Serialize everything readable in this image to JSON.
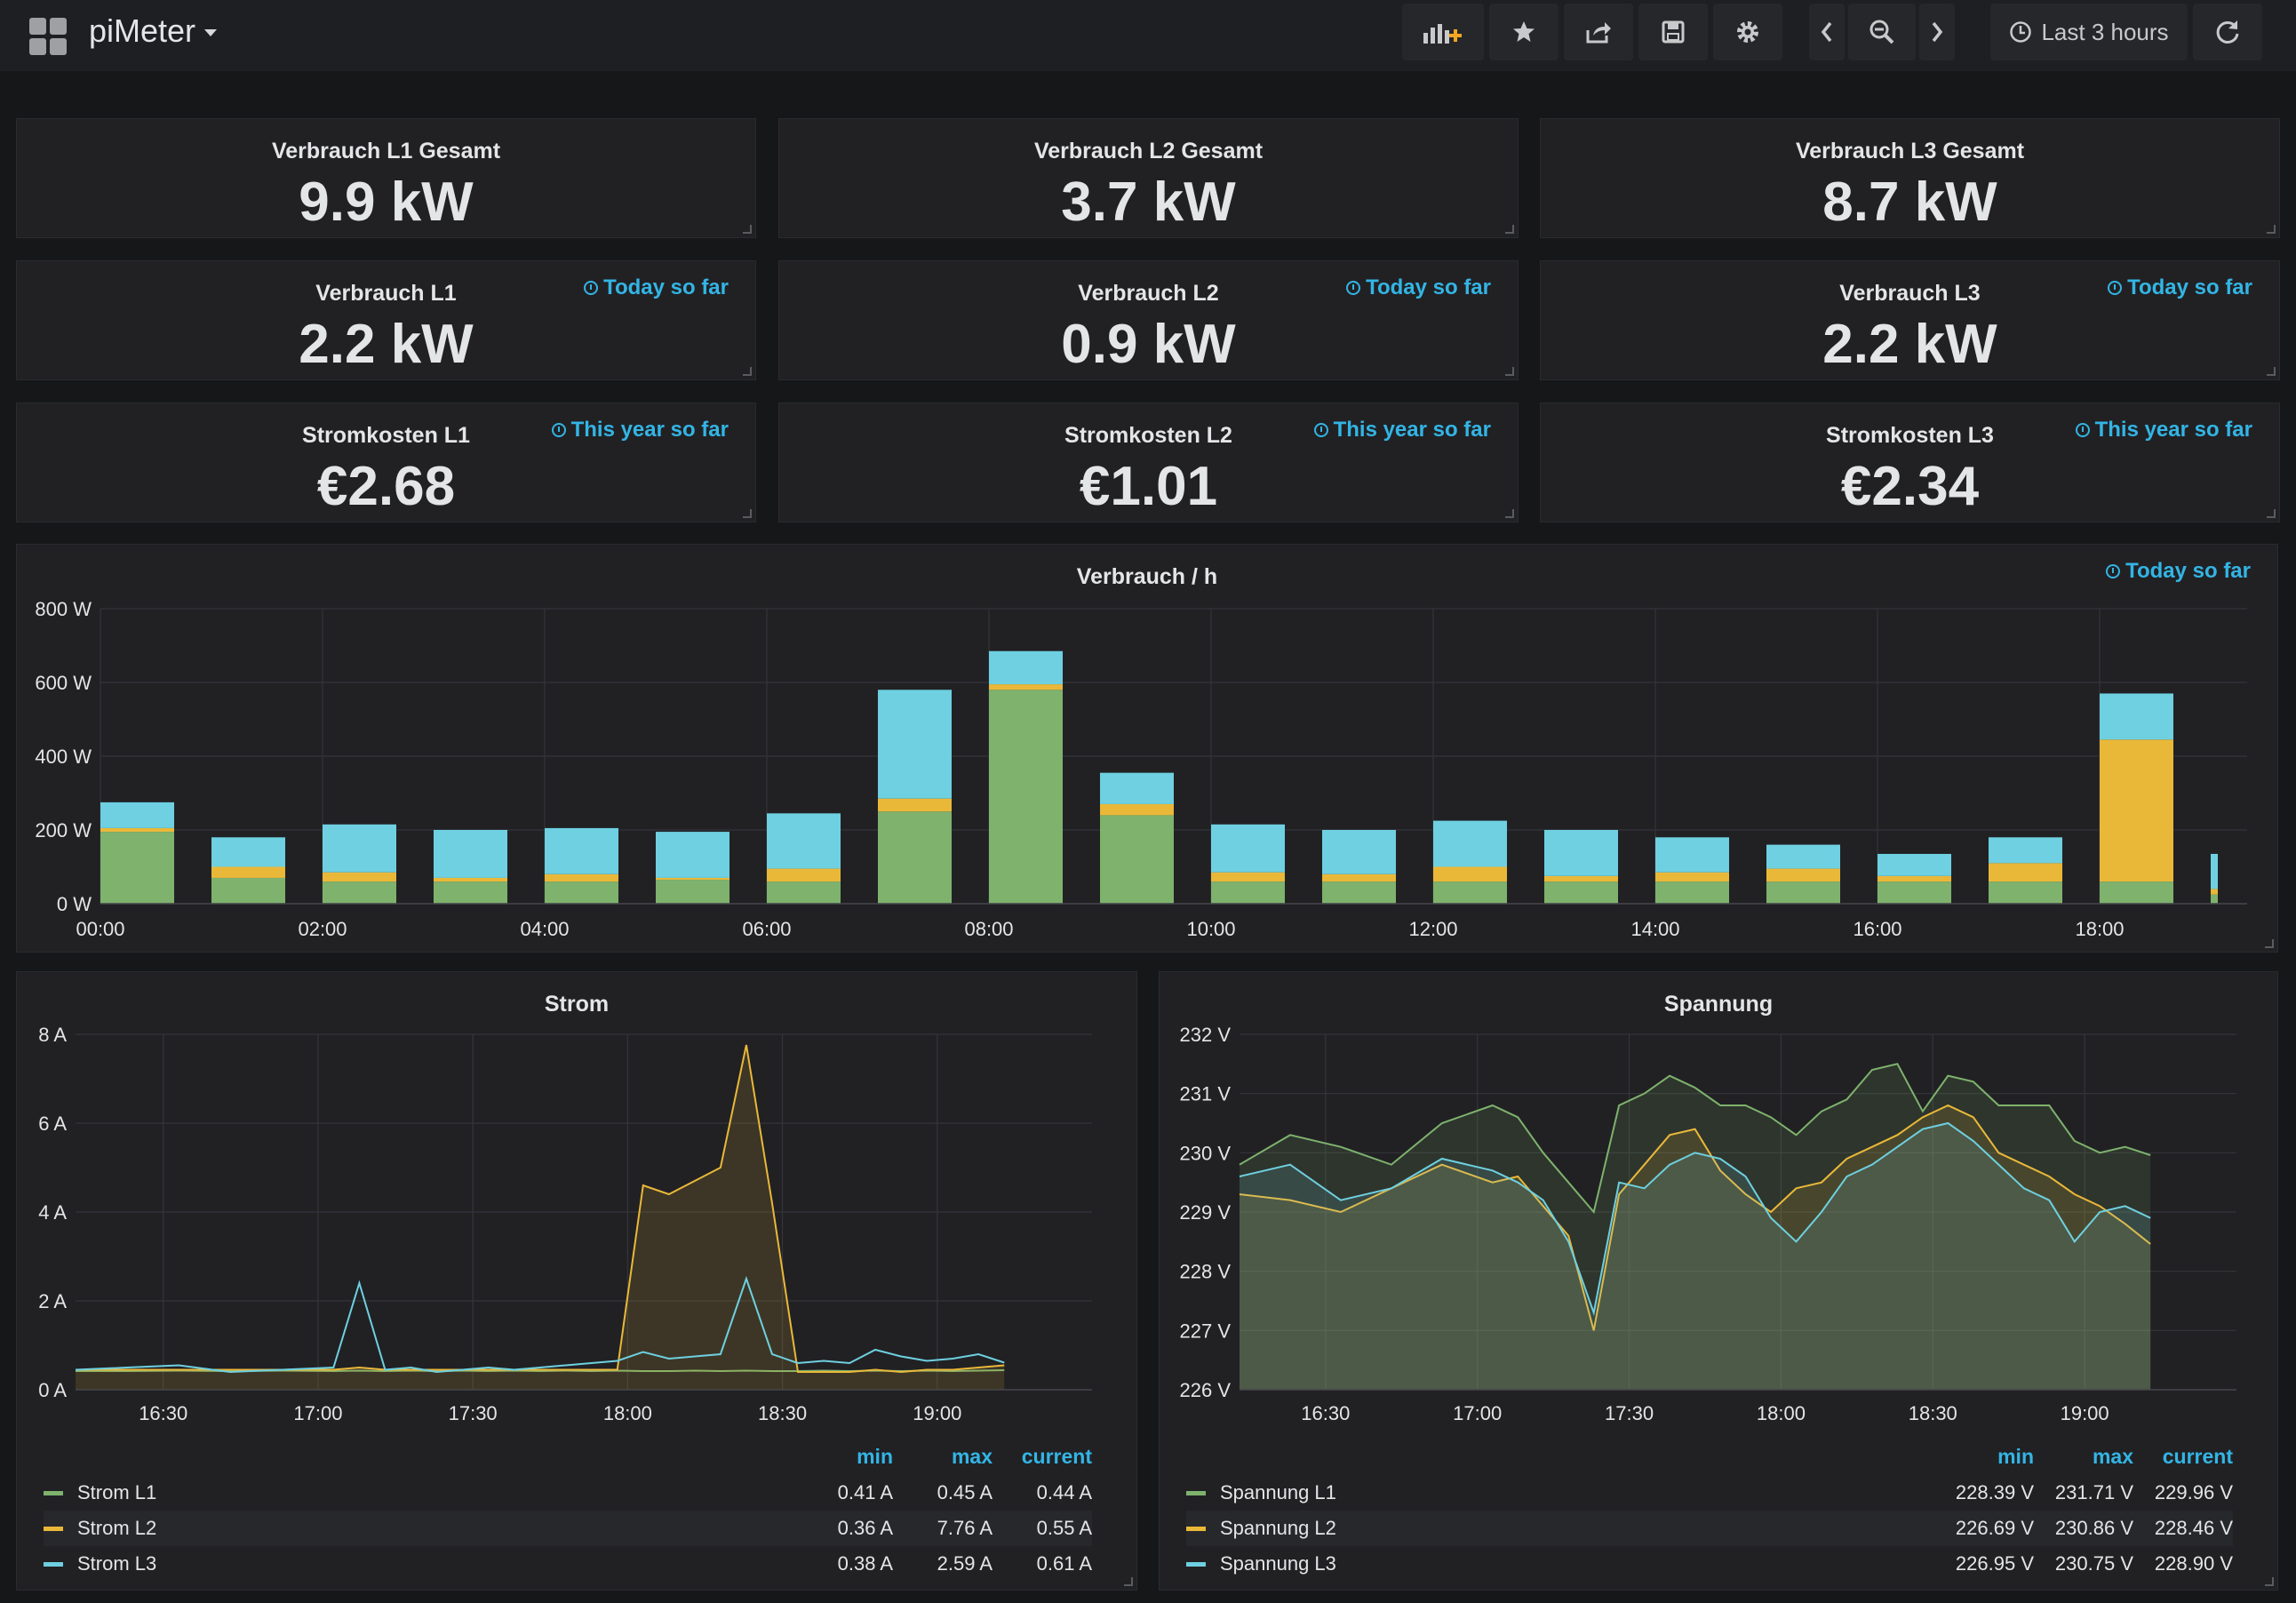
{
  "dashboard": {
    "title": "piMeter",
    "time_range": "Last 3 hours"
  },
  "stats": [
    {
      "title": "Verbrauch L1 Gesamt",
      "value": "9.9 kW",
      "info": ""
    },
    {
      "title": "Verbrauch L2 Gesamt",
      "value": "3.7 kW",
      "info": ""
    },
    {
      "title": "Verbrauch L3 Gesamt",
      "value": "8.7 kW",
      "info": ""
    },
    {
      "title": "Verbrauch L1",
      "value": "2.2 kW",
      "info": "Today so far"
    },
    {
      "title": "Verbrauch L2",
      "value": "0.9 kW",
      "info": "Today so far"
    },
    {
      "title": "Verbrauch L3",
      "value": "2.2 kW",
      "info": "Today so far"
    },
    {
      "title": "Stromkosten L1",
      "value": "€2.68",
      "info": "This year so far"
    },
    {
      "title": "Stromkosten L2",
      "value": "€1.01",
      "info": "This year so far"
    },
    {
      "title": "Stromkosten L3",
      "value": "€2.34",
      "info": "This year so far"
    }
  ],
  "colors": {
    "l1": "#7eb26d",
    "l2": "#eab839",
    "l3": "#6ed0e0",
    "accent": "#33b5e5"
  },
  "chart_data": [
    {
      "type": "bar",
      "stacked": true,
      "title": "Verbrauch / h",
      "info": "Today so far",
      "x_tick_labels": [
        "00:00",
        "02:00",
        "04:00",
        "06:00",
        "08:00",
        "10:00",
        "12:00",
        "14:00",
        "16:00",
        "18:00"
      ],
      "y_tick_labels": [
        "0 W",
        "200 W",
        "400 W",
        "600 W",
        "800 W"
      ],
      "ylim": [
        0,
        800
      ],
      "categories": [
        "00",
        "01",
        "02",
        "03",
        "04",
        "05",
        "06",
        "07",
        "08",
        "09",
        "10",
        "11",
        "12",
        "13",
        "14",
        "15",
        "16",
        "17",
        "18",
        "19"
      ],
      "series": [
        {
          "color": "#7eb26d",
          "values": [
            195,
            70,
            60,
            60,
            60,
            65,
            60,
            250,
            580,
            240,
            60,
            60,
            60,
            60,
            60,
            60,
            60,
            60,
            60,
            25
          ]
        },
        {
          "color": "#eab839",
          "values": [
            10,
            30,
            25,
            10,
            20,
            5,
            35,
            35,
            15,
            30,
            25,
            20,
            40,
            15,
            25,
            35,
            15,
            50,
            385,
            15
          ]
        },
        {
          "color": "#6ed0e0",
          "values": [
            70,
            80,
            130,
            130,
            125,
            125,
            150,
            295,
            90,
            85,
            130,
            120,
            125,
            125,
            95,
            65,
            60,
            70,
            125,
            95
          ]
        }
      ]
    },
    {
      "type": "line",
      "title": "Strom",
      "x_tick_labels": [
        "16:30",
        "17:00",
        "17:30",
        "18:00",
        "18:30",
        "19:00"
      ],
      "y_tick_labels": [
        "0 A",
        "2 A",
        "4 A",
        "6 A",
        "8 A"
      ],
      "ylim": [
        0,
        8
      ],
      "x_minutes": [
        0,
        10,
        20,
        30,
        40,
        50,
        55,
        60,
        65,
        70,
        75,
        80,
        85,
        90,
        95,
        100,
        105,
        110,
        115,
        120,
        125,
        130,
        135,
        140,
        145,
        150,
        155,
        160,
        165,
        170,
        175,
        180
      ],
      "legend_headers": [
        "min",
        "max",
        "current"
      ],
      "series": [
        {
          "name": "Strom L1",
          "color": "#7eb26d",
          "min": "0.41 A",
          "max": "0.45 A",
          "current": "0.44 A",
          "values": [
            0.42,
            0.42,
            0.43,
            0.42,
            0.43,
            0.42,
            0.43,
            0.42,
            0.43,
            0.42,
            0.43,
            0.42,
            0.43,
            0.42,
            0.43,
            0.42,
            0.43,
            0.42,
            0.42,
            0.43,
            0.42,
            0.43,
            0.42,
            0.42,
            0.43,
            0.42,
            0.43,
            0.42,
            0.43,
            0.42,
            0.43,
            0.44
          ]
        },
        {
          "name": "Strom L2",
          "color": "#eab839",
          "min": "0.36 A",
          "max": "7.76 A",
          "current": "0.55 A",
          "values": [
            0.45,
            0.45,
            0.45,
            0.45,
            0.45,
            0.45,
            0.5,
            0.45,
            0.45,
            0.45,
            0.45,
            0.45,
            0.45,
            0.45,
            0.45,
            0.45,
            0.45,
            4.6,
            4.4,
            4.7,
            5.0,
            7.76,
            4.2,
            0.4,
            0.4,
            0.4,
            0.45,
            0.4,
            0.45,
            0.45,
            0.5,
            0.55
          ]
        },
        {
          "name": "Strom L3",
          "color": "#6ed0e0",
          "min": "0.38 A",
          "max": "2.59 A",
          "current": "0.61 A",
          "values": [
            0.45,
            0.5,
            0.55,
            0.4,
            0.45,
            0.5,
            2.4,
            0.45,
            0.5,
            0.4,
            0.45,
            0.5,
            0.45,
            0.5,
            0.55,
            0.6,
            0.65,
            0.85,
            0.7,
            0.75,
            0.8,
            2.5,
            0.8,
            0.6,
            0.65,
            0.6,
            0.9,
            0.75,
            0.65,
            0.7,
            0.8,
            0.61
          ]
        }
      ]
    },
    {
      "type": "line",
      "title": "Spannung",
      "x_tick_labels": [
        "16:30",
        "17:00",
        "17:30",
        "18:00",
        "18:30",
        "19:00"
      ],
      "y_tick_labels": [
        "226 V",
        "227 V",
        "228 V",
        "229 V",
        "230 V",
        "231 V",
        "232 V"
      ],
      "ylim": [
        226,
        232
      ],
      "x_minutes": [
        0,
        10,
        20,
        30,
        40,
        50,
        55,
        60,
        65,
        70,
        75,
        80,
        85,
        90,
        95,
        100,
        105,
        110,
        115,
        120,
        125,
        130,
        135,
        140,
        145,
        150,
        155,
        160,
        165,
        170,
        175,
        180
      ],
      "legend_headers": [
        "min",
        "max",
        "current"
      ],
      "series": [
        {
          "name": "Spannung L1",
          "color": "#7eb26d",
          "min": "228.39 V",
          "max": "231.71 V",
          "current": "229.96 V",
          "values": [
            229.8,
            230.3,
            230.1,
            229.8,
            230.5,
            230.8,
            230.6,
            230.0,
            229.5,
            229.0,
            230.8,
            231.0,
            231.3,
            231.1,
            230.8,
            230.8,
            230.6,
            230.3,
            230.7,
            230.9,
            231.4,
            231.5,
            230.7,
            231.3,
            231.2,
            230.8,
            230.8,
            230.8,
            230.2,
            230.0,
            230.1,
            229.96
          ]
        },
        {
          "name": "Spannung L2",
          "color": "#eab839",
          "min": "226.69 V",
          "max": "230.86 V",
          "current": "228.46 V",
          "values": [
            229.3,
            229.2,
            229.0,
            229.4,
            229.8,
            229.5,
            229.6,
            229.1,
            228.6,
            227.0,
            229.3,
            229.8,
            230.3,
            230.4,
            229.7,
            229.3,
            229.0,
            229.4,
            229.5,
            229.9,
            230.1,
            230.3,
            230.6,
            230.8,
            230.6,
            230.0,
            229.8,
            229.6,
            229.3,
            229.1,
            228.8,
            228.46
          ]
        },
        {
          "name": "Spannung L3",
          "color": "#6ed0e0",
          "min": "226.95 V",
          "max": "230.75 V",
          "current": "228.90 V",
          "values": [
            229.6,
            229.8,
            229.2,
            229.4,
            229.9,
            229.7,
            229.5,
            229.2,
            228.5,
            227.3,
            229.5,
            229.4,
            229.8,
            230.0,
            229.9,
            229.6,
            228.9,
            228.5,
            229.0,
            229.6,
            229.8,
            230.1,
            230.4,
            230.5,
            230.2,
            229.8,
            229.4,
            229.2,
            228.5,
            229.0,
            229.1,
            228.9
          ]
        }
      ]
    }
  ]
}
